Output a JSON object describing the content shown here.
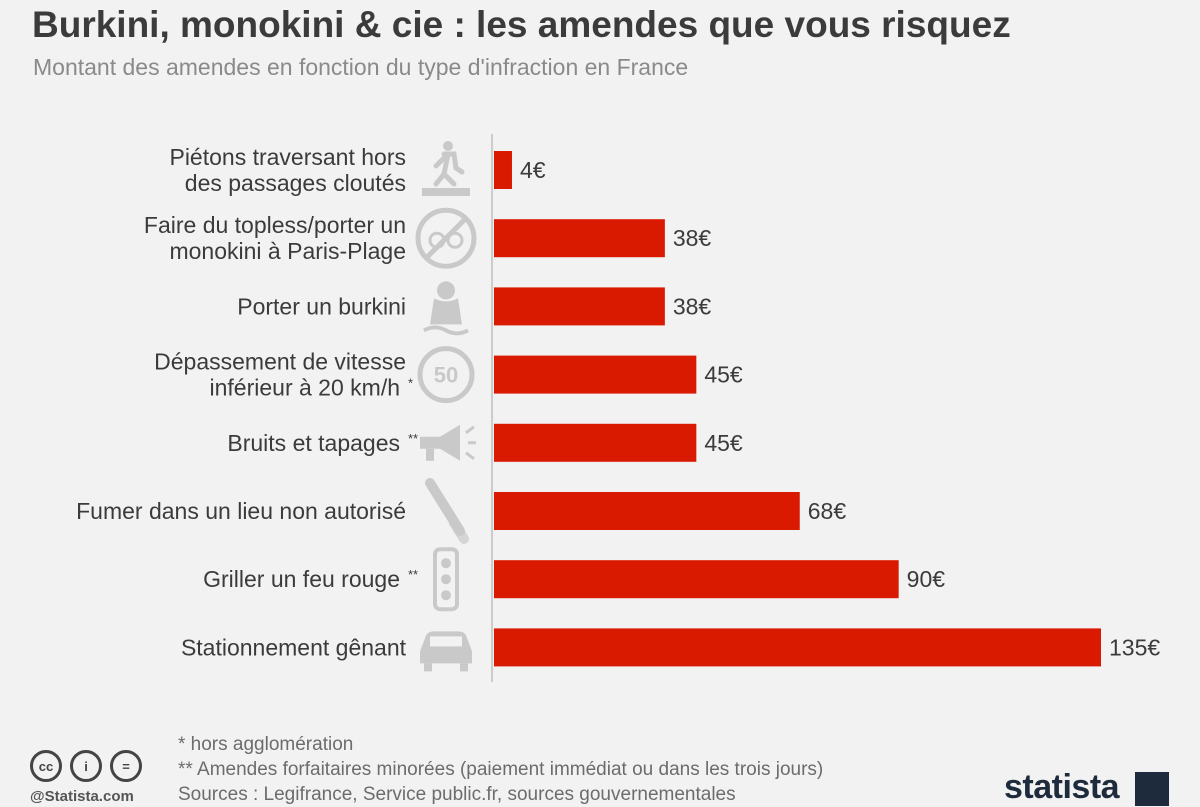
{
  "header": {
    "title": "Burkini, monokini & cie : les amendes que vous risquez",
    "subtitle": "Montant des amendes en fonction du type d'infraction en France"
  },
  "chart_data": {
    "type": "bar",
    "orientation": "horizontal",
    "categories": [
      {
        "lines": [
          "Piétons traversant hors",
          "des passages cloutés"
        ],
        "mark": "",
        "icon": "pedestrian-crossing-icon"
      },
      {
        "lines": [
          "Faire du topless/porter un",
          "monokini à Paris-Plage"
        ],
        "mark": "",
        "icon": "no-topless-icon"
      },
      {
        "lines": [
          "Porter un burkini"
        ],
        "mark": "",
        "icon": "burkini-icon"
      },
      {
        "lines": [
          "Dépassement de vitesse",
          "inférieur à 20 km/h"
        ],
        "mark": "*",
        "icon": "speed-limit-50-icon"
      },
      {
        "lines": [
          "Bruits et tapages"
        ],
        "mark": "**",
        "icon": "megaphone-icon"
      },
      {
        "lines": [
          "Fumer dans un lieu non autorisé"
        ],
        "mark": "",
        "icon": "cigarette-icon"
      },
      {
        "lines": [
          "Griller un feu rouge"
        ],
        "mark": "**",
        "icon": "traffic-light-icon"
      },
      {
        "lines": [
          "Stationnement gênant"
        ],
        "mark": "",
        "icon": "car-icon"
      }
    ],
    "values": [
      4,
      38,
      38,
      45,
      45,
      68,
      90,
      135
    ],
    "value_labels": [
      "4€",
      "38€",
      "38€",
      "45€",
      "45€",
      "68€",
      "90€",
      "135€"
    ],
    "unit": "€",
    "bar_color": "#d91a00",
    "icon_color": "#c9c9c9",
    "grid": false
  },
  "footnotes": [
    "*  hors agglomération",
    "** Amendes forfaitaires minorées (paiement immédiat ou dans les trois jours)",
    "Sources : Legifrance, Service public.fr, sources gouvernementales"
  ],
  "footer": {
    "cc_icons": [
      "cc",
      "i",
      "="
    ],
    "handle": "@Statista.com",
    "brand": "statista"
  }
}
